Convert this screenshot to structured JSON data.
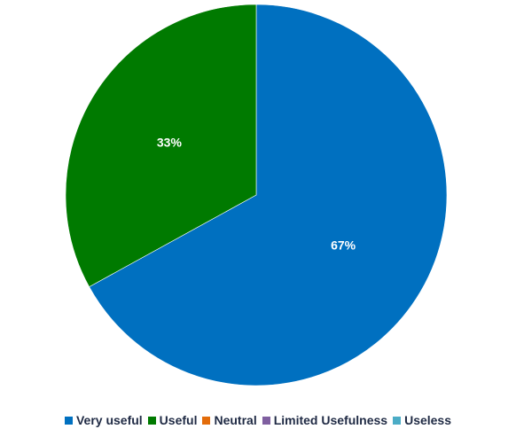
{
  "chart_data": {
    "type": "pie",
    "title": "",
    "categories": [
      "Very useful",
      "Useful",
      "Neutral",
      "Limited Usefulness",
      "Useless"
    ],
    "values": [
      67,
      33,
      0,
      0,
      0
    ],
    "value_labels": [
      "67%",
      "33%",
      "",
      "",
      ""
    ],
    "colors": [
      "#0070C0",
      "#007A00",
      "#E36C0A",
      "#7F5FA0",
      "#4BACC6"
    ],
    "legend_position": "bottom"
  }
}
